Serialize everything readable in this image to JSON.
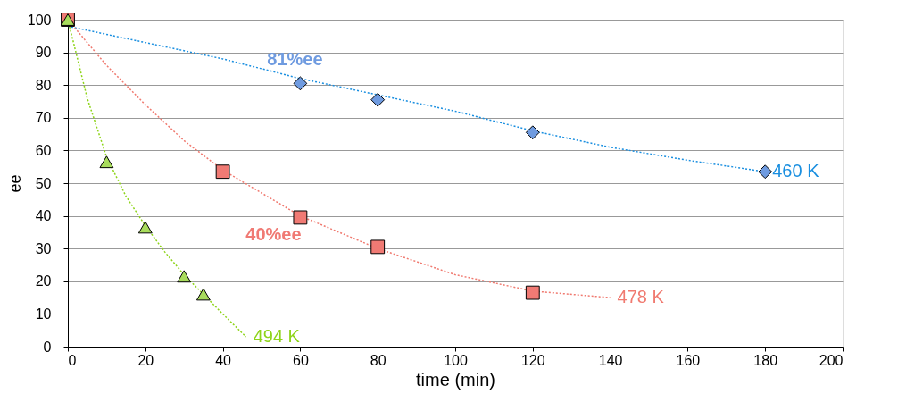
{
  "chart_data": {
    "type": "scatter",
    "xlabel": "time (min)",
    "ylabel": "ee",
    "xlim": [
      0,
      200
    ],
    "ylim": [
      0,
      100
    ],
    "xticks": [
      0,
      20,
      40,
      60,
      80,
      100,
      120,
      140,
      160,
      180,
      200
    ],
    "yticks": [
      0,
      10,
      20,
      30,
      40,
      50,
      60,
      70,
      80,
      90,
      100
    ],
    "grid": "y",
    "legend": false,
    "series": [
      {
        "type": "line",
        "line_style": "dotted",
        "marker": "none",
        "name": "460 K",
        "color": "#1a8fe0",
        "x": [
          0,
          20,
          40,
          60,
          80,
          100,
          120,
          140,
          160,
          180
        ],
        "values": [
          98,
          93,
          88,
          82,
          77,
          72,
          66,
          61,
          57,
          53.5
        ]
      },
      {
        "type": "line",
        "line_style": "dotted",
        "marker": "none",
        "name": "478 K",
        "color": "#f07a70",
        "x": [
          0,
          10,
          20,
          30,
          40,
          60,
          80,
          100,
          120,
          140
        ],
        "values": [
          100,
          86,
          74,
          63,
          54,
          40,
          30,
          22,
          17,
          15
        ]
      },
      {
        "type": "line",
        "line_style": "dotted",
        "marker": "none",
        "name": "494 K",
        "color": "#8ed41a",
        "x": [
          0,
          5,
          10,
          15,
          20,
          25,
          30,
          35,
          40,
          46
        ],
        "values": [
          100,
          76,
          58,
          46,
          37,
          29,
          22,
          16,
          10,
          3
        ]
      },
      {
        "marker": "diamond",
        "color": "#6f9be0",
        "x": [
          60,
          80,
          120,
          180
        ],
        "values": [
          80.5,
          75.5,
          65.5,
          53.5
        ]
      },
      {
        "marker": "square",
        "color": "#f07a74",
        "x": [
          0,
          40,
          60,
          80,
          120
        ],
        "values": [
          100,
          53.5,
          39.5,
          30.5,
          16.5
        ]
      },
      {
        "marker": "triangle",
        "color": "#a8dc5c",
        "x": [
          0,
          10,
          20,
          30,
          35
        ],
        "values": [
          100,
          56.5,
          36.5,
          21.5,
          16
        ]
      }
    ],
    "annotations": [
      {
        "text": "81%ee",
        "x": 60,
        "y": 80.5
      },
      {
        "text": "40%ee",
        "x": 60,
        "y": 39.5
      }
    ]
  }
}
